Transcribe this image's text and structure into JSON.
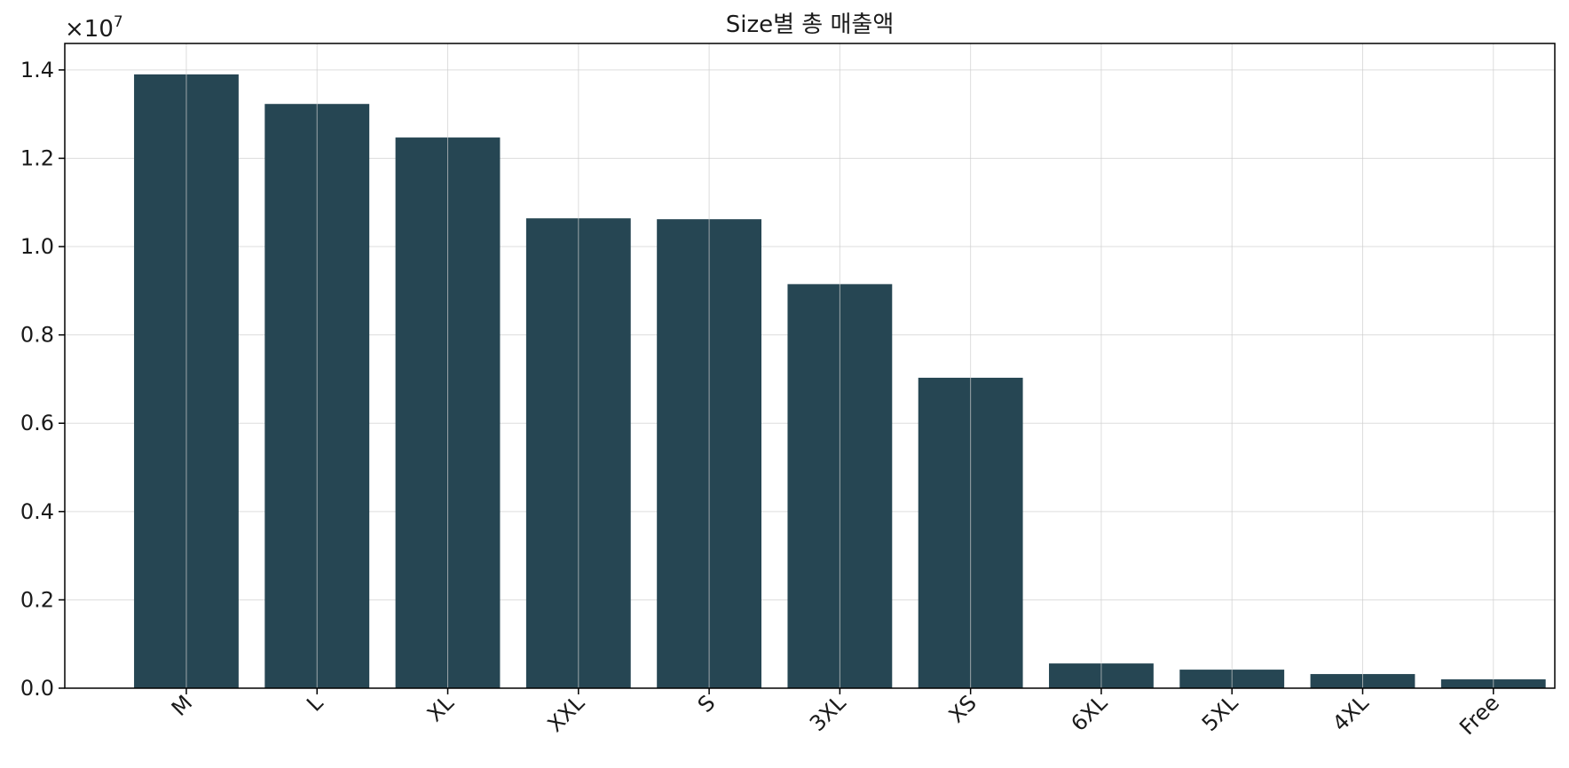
{
  "chart_data": {
    "type": "bar",
    "title": "Size별 총 매출액",
    "categories": [
      "M",
      "L",
      "XL",
      "XXL",
      "S",
      "3XL",
      "XS",
      "6XL",
      "5XL",
      "4XL",
      "Free"
    ],
    "values": [
      13900000,
      13230000,
      12470000,
      10640000,
      10620000,
      9150000,
      7030000,
      560000,
      420000,
      320000,
      200000
    ],
    "ylim": [
      0,
      14600000
    ],
    "yticks": [
      0,
      2000000,
      4000000,
      6000000,
      8000000,
      10000000,
      12000000,
      14000000
    ],
    "ytick_labels": [
      "0.0",
      "0.2",
      "0.4",
      "0.6",
      "0.8",
      "1.0",
      "1.2",
      "1.4"
    ],
    "y_offset_label": {
      "base": "×10",
      "exponent": "7"
    },
    "xlabel": "",
    "ylabel": "",
    "grid": true,
    "legend": "none",
    "bar_color": "#264653"
  }
}
